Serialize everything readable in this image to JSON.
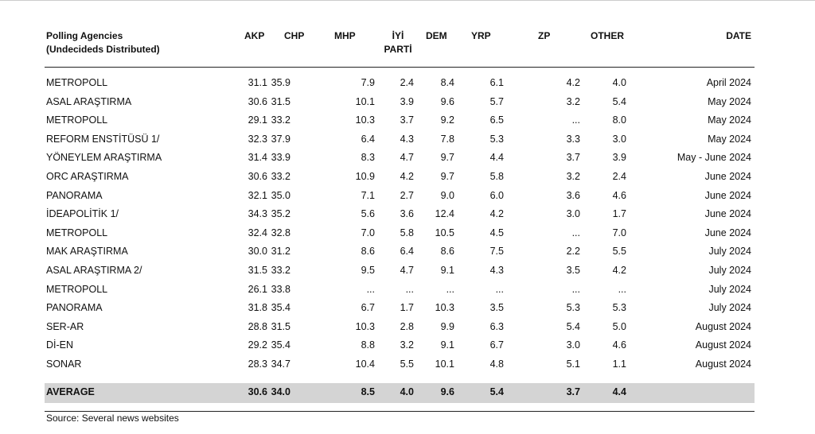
{
  "table": {
    "header": [
      [
        "Polling Agencies",
        "(Undecideds Distributed)"
      ],
      [
        "AKP"
      ],
      [
        "CHP"
      ],
      [
        "MHP"
      ],
      [
        "İYİ",
        "PARTİ"
      ],
      [
        "DEM"
      ],
      [
        "YRP"
      ],
      [
        "ZP"
      ],
      [
        "OTHER"
      ],
      [
        "DATE"
      ]
    ],
    "rows": [
      [
        "METROPOLL",
        "31.1",
        "35.9",
        "7.9",
        "2.4",
        "8.4",
        "6.1",
        "4.2",
        "4.0",
        "April 2024"
      ],
      [
        "ASAL ARAŞTIRMA",
        "30.6",
        "31.5",
        "10.1",
        "3.9",
        "9.6",
        "5.7",
        "3.2",
        "5.4",
        "May 2024"
      ],
      [
        "METROPOLL",
        "29.1",
        "33.2",
        "10.3",
        "3.7",
        "9.2",
        "6.5",
        "...",
        "8.0",
        "May 2024"
      ],
      [
        "REFORM ENSTİTÜSÜ 1/",
        "32.3",
        "37.9",
        "6.4",
        "4.3",
        "7.8",
        "5.3",
        "3.3",
        "3.0",
        "May 2024"
      ],
      [
        "YÖNEYLEM ARAŞTIRMA",
        "31.4",
        "33.9",
        "8.3",
        "4.7",
        "9.7",
        "4.4",
        "3.7",
        "3.9",
        "May - June 2024"
      ],
      [
        "ORC ARAŞTIRMA",
        "30.6",
        "33.2",
        "10.9",
        "4.2",
        "9.7",
        "5.8",
        "3.2",
        "2.4",
        "June 2024"
      ],
      [
        "PANORAMA",
        "32.1",
        "35.0",
        "7.1",
        "2.7",
        "9.0",
        "6.0",
        "3.6",
        "4.6",
        "June 2024"
      ],
      [
        "İDEAPOLİTİK 1/",
        "34.3",
        "35.2",
        "5.6",
        "3.6",
        "12.4",
        "4.2",
        "3.0",
        "1.7",
        "June 2024"
      ],
      [
        "METROPOLL",
        "32.4",
        "32.8",
        "7.0",
        "5.8",
        "10.5",
        "4.5",
        "...",
        "7.0",
        "June 2024"
      ],
      [
        "MAK ARAŞTIRMA",
        "30.0",
        "31.2",
        "8.6",
        "6.4",
        "8.6",
        "7.5",
        "2.2",
        "5.5",
        "July 2024"
      ],
      [
        "ASAL ARAŞTIRMA 2/",
        "31.5",
        "33.2",
        "9.5",
        "4.7",
        "9.1",
        "4.3",
        "3.5",
        "4.2",
        "July 2024"
      ],
      [
        "METROPOLL",
        "26.1",
        "33.8",
        "...",
        "...",
        "...",
        "...",
        "...",
        "...",
        "July 2024"
      ],
      [
        "PANORAMA",
        "31.8",
        "35.4",
        "6.7",
        "1.7",
        "10.3",
        "3.5",
        "5.3",
        "5.3",
        "July 2024"
      ],
      [
        "SER-AR",
        "28.8",
        "31.5",
        "10.3",
        "2.8",
        "9.9",
        "6.3",
        "5.4",
        "5.0",
        "August 2024"
      ],
      [
        "Dİ-EN",
        "29.2",
        "35.4",
        "8.8",
        "3.2",
        "9.1",
        "6.7",
        "3.0",
        "4.6",
        "August 2024"
      ],
      [
        "SONAR",
        "28.3",
        "34.7",
        "10.4",
        "5.5",
        "10.1",
        "4.8",
        "5.1",
        "1.1",
        "August 2024"
      ]
    ],
    "average": [
      "AVERAGE",
      "30.6",
      "34.0",
      "8.5",
      "4.0",
      "9.6",
      "5.4",
      "3.7",
      "4.4"
    ],
    "source": "Source: Several news websites"
  }
}
